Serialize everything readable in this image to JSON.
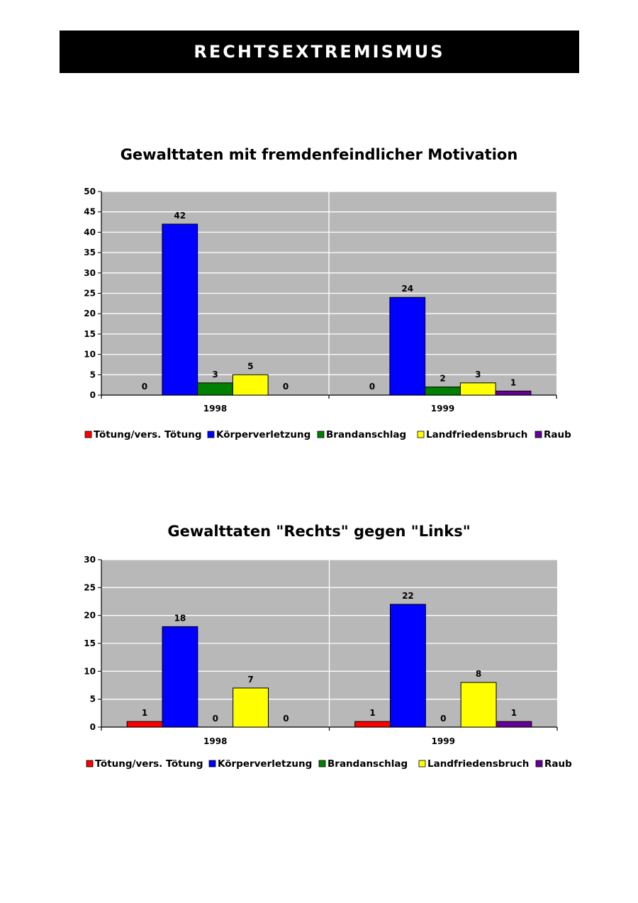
{
  "header": {
    "title": "RECHTSEXTREMISMUS"
  },
  "chart_data": [
    {
      "type": "bar",
      "title": "Gewalttaten mit fremdenfeindlicher Motivation",
      "categories": [
        "1998",
        "1999"
      ],
      "ylim": [
        0,
        50
      ],
      "yticks": [
        0,
        5,
        10,
        15,
        20,
        25,
        30,
        35,
        40,
        45,
        50
      ],
      "grid": true,
      "legend": "bottom",
      "series": [
        {
          "name": "Tötung/vers. Tötung",
          "color": "#ff0000",
          "values": [
            0,
            0
          ]
        },
        {
          "name": "Körperverletzung",
          "color": "#0000ff",
          "values": [
            42,
            24
          ]
        },
        {
          "name": "Brandanschlag",
          "color": "#008000",
          "values": [
            3,
            2
          ]
        },
        {
          "name": "Landfriedensbruch",
          "color": "#ffff00",
          "values": [
            5,
            3
          ]
        },
        {
          "name": "Raub",
          "color": "#660099",
          "values": [
            0,
            1
          ]
        }
      ]
    },
    {
      "type": "bar",
      "title": "Gewalttaten \"Rechts\" gegen \"Links\"",
      "categories": [
        "1998",
        "1999"
      ],
      "ylim": [
        0,
        30
      ],
      "yticks": [
        0,
        5,
        10,
        15,
        20,
        25,
        30
      ],
      "grid": true,
      "legend": "bottom",
      "series": [
        {
          "name": "Tötung/vers. Tötung",
          "color": "#ff0000",
          "values": [
            1,
            1
          ]
        },
        {
          "name": "Körperverletzung",
          "color": "#0000ff",
          "values": [
            18,
            22
          ]
        },
        {
          "name": "Brandanschlag",
          "color": "#008000",
          "values": [
            0,
            0
          ]
        },
        {
          "name": "Landfriedensbruch",
          "color": "#ffff00",
          "values": [
            7,
            8
          ]
        },
        {
          "name": "Raub",
          "color": "#660099",
          "values": [
            0,
            1
          ]
        }
      ]
    }
  ]
}
